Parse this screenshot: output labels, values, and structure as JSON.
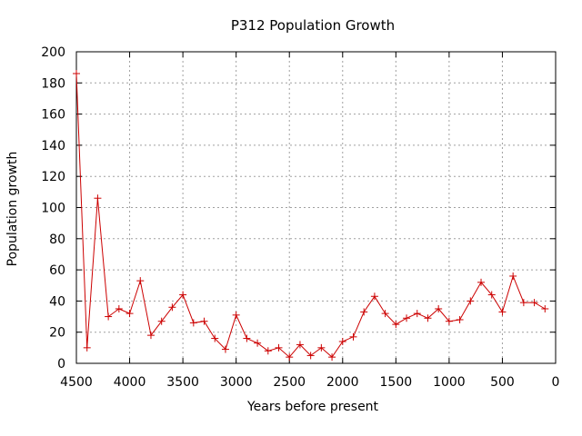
{
  "chart_data": {
    "type": "line",
    "title": "P312 Population Growth",
    "xlabel": "Years before present",
    "ylabel": "Population growth",
    "xlim": [
      4500,
      0
    ],
    "ylim": [
      0,
      200
    ],
    "x_ticks": [
      4500,
      4000,
      3500,
      3000,
      2500,
      2000,
      1500,
      1000,
      500,
      0
    ],
    "y_ticks": [
      0,
      20,
      40,
      60,
      80,
      100,
      120,
      140,
      160,
      180,
      200
    ],
    "grid": true,
    "legend": "none",
    "series_color": "#cc0000",
    "series": [
      {
        "x": [
          4500,
          4400,
          4300,
          4200,
          4100,
          4000,
          3900,
          3800,
          3700,
          3600,
          3500,
          3400,
          3300,
          3200,
          3100,
          3000,
          2900,
          2800,
          2700,
          2600,
          2500,
          2400,
          2300,
          2200,
          2100,
          2000,
          1900,
          1800,
          1700,
          1600,
          1500,
          1400,
          1300,
          1200,
          1100,
          1000,
          900,
          800,
          700,
          600,
          500,
          400,
          300,
          200,
          100
        ],
        "values": [
          186,
          10,
          106,
          30,
          35,
          32,
          53,
          18,
          27,
          36,
          44,
          26,
          27,
          16,
          9,
          31,
          16,
          13,
          8,
          10,
          4,
          12,
          5,
          10,
          4,
          14,
          17,
          33,
          43,
          32,
          25,
          29,
          32,
          29,
          35,
          27,
          28,
          40,
          52,
          44,
          33,
          56,
          39,
          39,
          35
        ]
      }
    ]
  }
}
